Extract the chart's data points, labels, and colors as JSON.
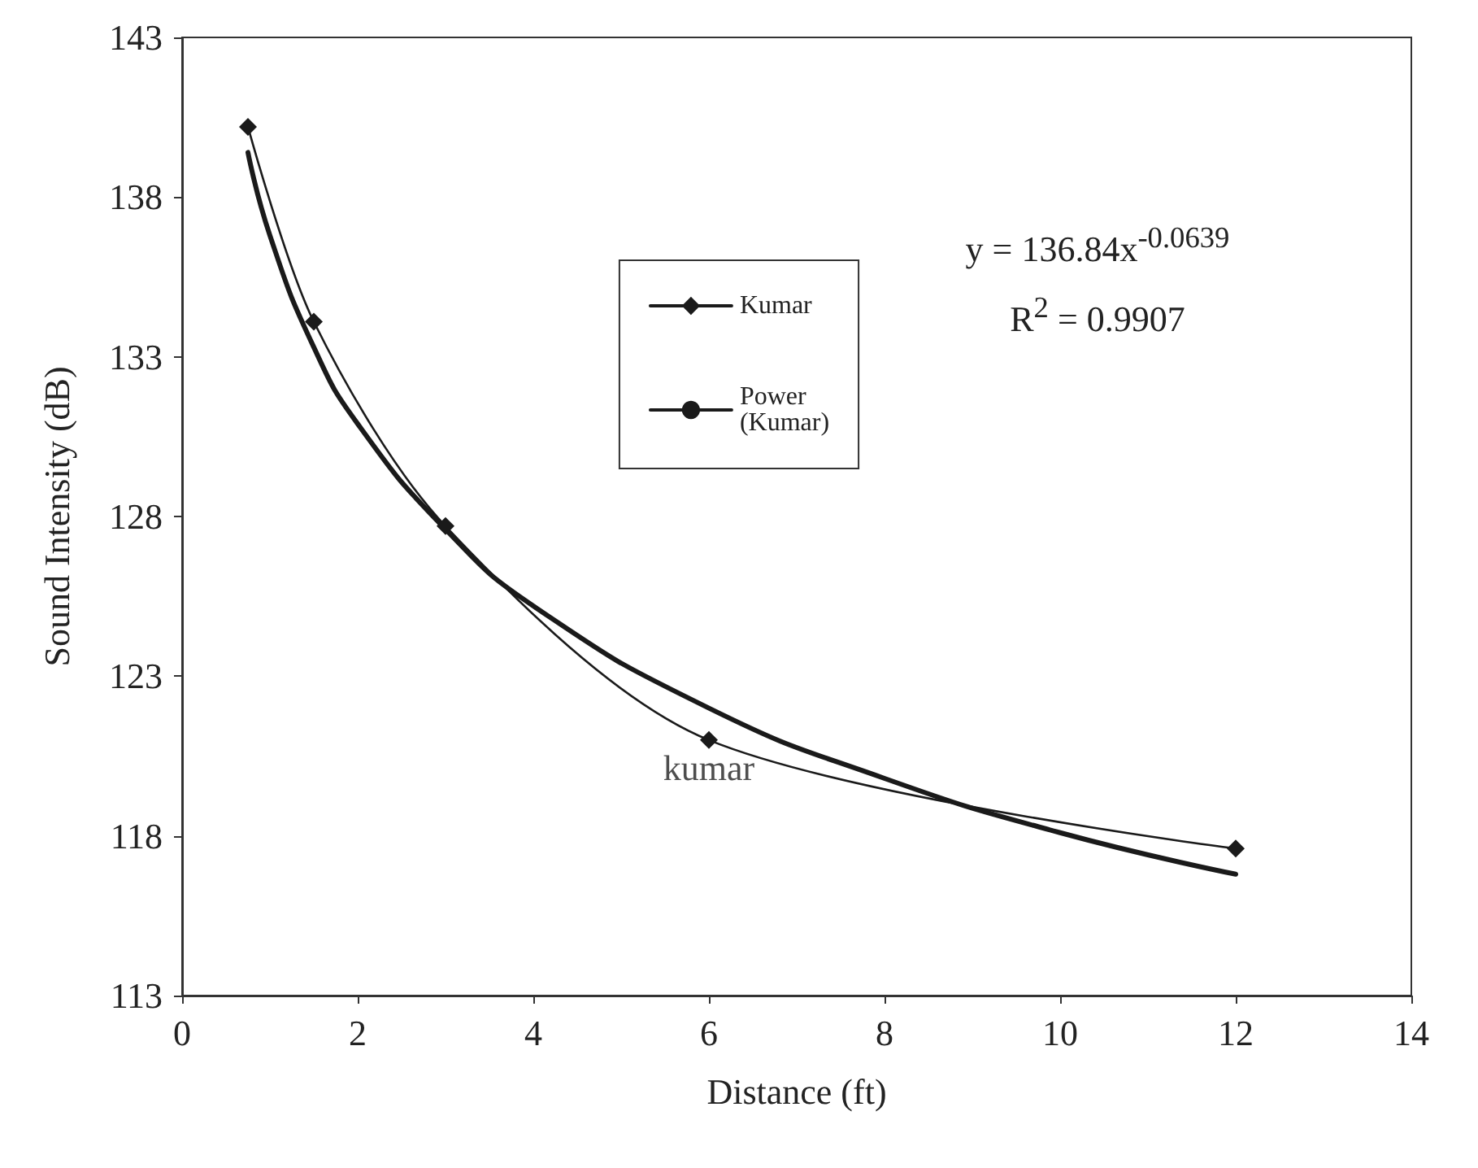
{
  "chart_data": {
    "type": "line",
    "xlabel": "Distance (ft)",
    "ylabel": "Sound Intensity (dB)",
    "xlim": [
      0,
      14
    ],
    "xticks": [
      0,
      2,
      4,
      6,
      8,
      10,
      12,
      14
    ],
    "ylim": [
      113,
      143
    ],
    "yticks": [
      113,
      118,
      123,
      128,
      133,
      138,
      143
    ],
    "grid": false,
    "legend": "top",
    "marker": "diamond",
    "line_style": "solid",
    "series": [
      {
        "name": "Kumar",
        "color": "#1a1a1a",
        "x": [
          0.75,
          1.5,
          3,
          6,
          12
        ],
        "values": [
          140.2,
          134.1,
          127.7,
          121.0,
          117.6
        ]
      },
      {
        "name": "Power (Kumar)",
        "color": "#1a1a1a",
        "marker": "none",
        "x": [
          0.75,
          1,
          1.5,
          2,
          3,
          4,
          6,
          8,
          10,
          12
        ],
        "values": [
          139.4,
          136.8,
          133.3,
          130.9,
          127.6,
          125.2,
          122.0,
          119.8,
          118.1,
          116.8
        ]
      }
    ],
    "annotations": [
      "y = 136.84x$^{-0.0639}$",
      "R$^{2}$ = 0.9907",
      {
        "text": "kumar",
        "x": 6,
        "y": 121
      }
    ]
  }
}
